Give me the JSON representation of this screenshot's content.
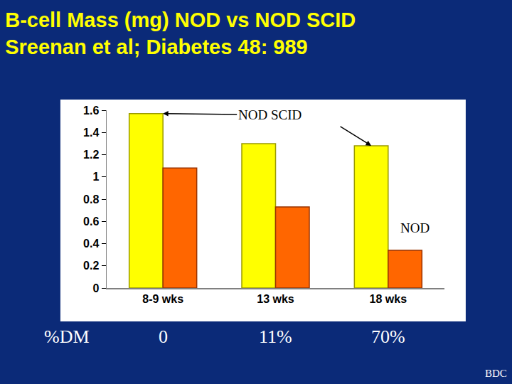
{
  "chart_data": {
    "type": "bar",
    "title": "B-cell Mass (mg) NOD vs NOD SCID",
    "subtitle": "Sreenan et al; Diabetes 48: 989",
    "categories": [
      "8-9 wks",
      "13 wks",
      "18 wks"
    ],
    "series": [
      {
        "name": "NOD SCID",
        "color": "#ffff00",
        "values": [
          1.57,
          1.3,
          1.28
        ]
      },
      {
        "name": "NOD",
        "color": "#ff6600",
        "values": [
          1.08,
          0.73,
          0.34
        ]
      }
    ],
    "ylim": [
      0,
      1.6
    ],
    "yticks": [
      0,
      0.2,
      0.4,
      0.6,
      0.8,
      1,
      1.2,
      1.4,
      1.6
    ],
    "grid": false,
    "diabetes_row": {
      "label": "%DM",
      "values": [
        0,
        11,
        70
      ],
      "value_labels": [
        "0",
        "11%",
        "70%"
      ]
    },
    "footer": "BDC"
  }
}
